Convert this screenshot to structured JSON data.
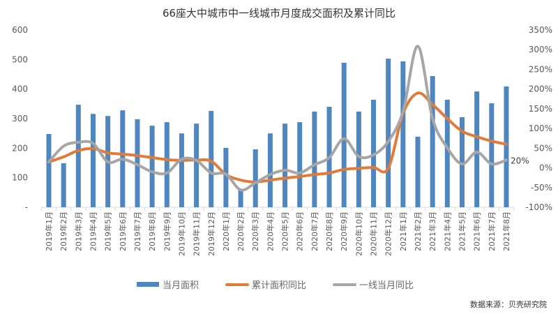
{
  "chart_data": {
    "type": "bar+line",
    "title": "66座大中城市中一线城市月度成交面积及累计同比",
    "categories": [
      "2019年1月",
      "2019年2月",
      "2019年3月",
      "2019年4月",
      "2019年5月",
      "2019年6月",
      "2019年7月",
      "2019年8月",
      "2019年9月",
      "2019年10月",
      "2019年11月",
      "2019年12月",
      "2020年1月",
      "2020年2月",
      "2020年3月",
      "2020年4月",
      "2020年5月",
      "2020年6月",
      "2020年7月",
      "2020年8月",
      "2020年9月",
      "2020年10月",
      "2020年11月",
      "2020年12月",
      "2021年1月",
      "2021年2月",
      "2021年3月",
      "2021年4月",
      "2021年5月",
      "2021年6月",
      "2021年7月",
      "2021年8月"
    ],
    "series": [
      {
        "name": "当月面积",
        "type": "bar",
        "axis": "left",
        "color": "#4f86c0",
        "values": [
          248,
          149,
          347,
          316,
          309,
          328,
          298,
          276,
          288,
          250,
          283,
          326,
          201,
          59,
          196,
          250,
          283,
          288,
          324,
          340,
          489,
          324,
          364,
          503,
          494,
          239,
          444,
          364,
          305,
          392,
          352,
          409
        ]
      },
      {
        "name": "累计面积同比",
        "type": "line",
        "axis": "right",
        "unit": "%",
        "color": "#e07b39",
        "values": [
          15,
          28,
          44,
          49,
          38,
          35,
          31,
          26,
          21,
          19,
          20,
          17,
          -17,
          -31,
          -36,
          -31,
          -26,
          -22,
          -17,
          -13,
          -4,
          -1,
          1,
          -1,
          138,
          190,
          161,
          125,
          93,
          79,
          68,
          60
        ]
      },
      {
        "name": "一线当月同比",
        "type": "line",
        "axis": "right",
        "unit": "%",
        "color": "#a6a6a6",
        "values": [
          15,
          55,
          65,
          62,
          15,
          22,
          8,
          -10,
          -13,
          22,
          19,
          -13,
          -16,
          -56,
          -38,
          -17,
          -6,
          -13,
          8,
          26,
          74,
          29,
          33,
          67,
          143,
          309,
          125,
          51,
          10,
          40,
          10,
          20
        ]
      }
    ],
    "left_axis": {
      "ticks": [
        "-",
        "100",
        "200",
        "300",
        "400",
        "500",
        "600"
      ],
      "range": [
        0,
        600
      ]
    },
    "right_axis": {
      "ticks": [
        "-100%",
        "-50%",
        "0%",
        "50%",
        "100%",
        "150%",
        "200%",
        "250%",
        "300%",
        "350%"
      ],
      "range": [
        -100,
        350
      ]
    },
    "annotation": {
      "text": "20%",
      "series": "一线当月同比",
      "index": 31
    },
    "legend_position": "bottom"
  },
  "legend": [
    {
      "label": "当月面积"
    },
    {
      "label": "累计面积同比"
    },
    {
      "label": "一线当月同比"
    }
  ],
  "source": "数据来源：贝壳研究院"
}
